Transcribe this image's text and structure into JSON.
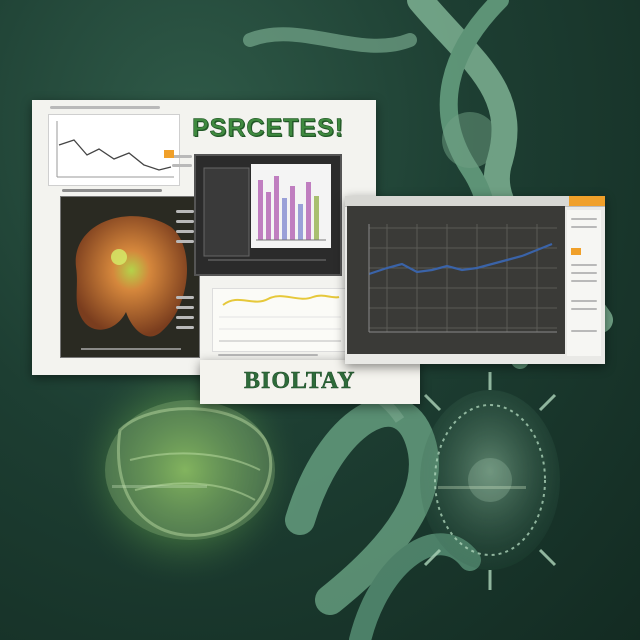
{
  "collage": {
    "headline": "PSRCETES!",
    "footer_title": "BIOLTAY",
    "colors": {
      "background": "#1d3e32",
      "headline_green": "#3f8a3f",
      "footer_green": "#2e6b3a",
      "line_blue": "#3a63a8",
      "line_yellow": "#e6c83a",
      "accent_orange": "#f0a02a"
    },
    "background_shapes": [
      "dna-strand",
      "cell-organism",
      "virus-particle",
      "green-glow-organ"
    ]
  }
}
